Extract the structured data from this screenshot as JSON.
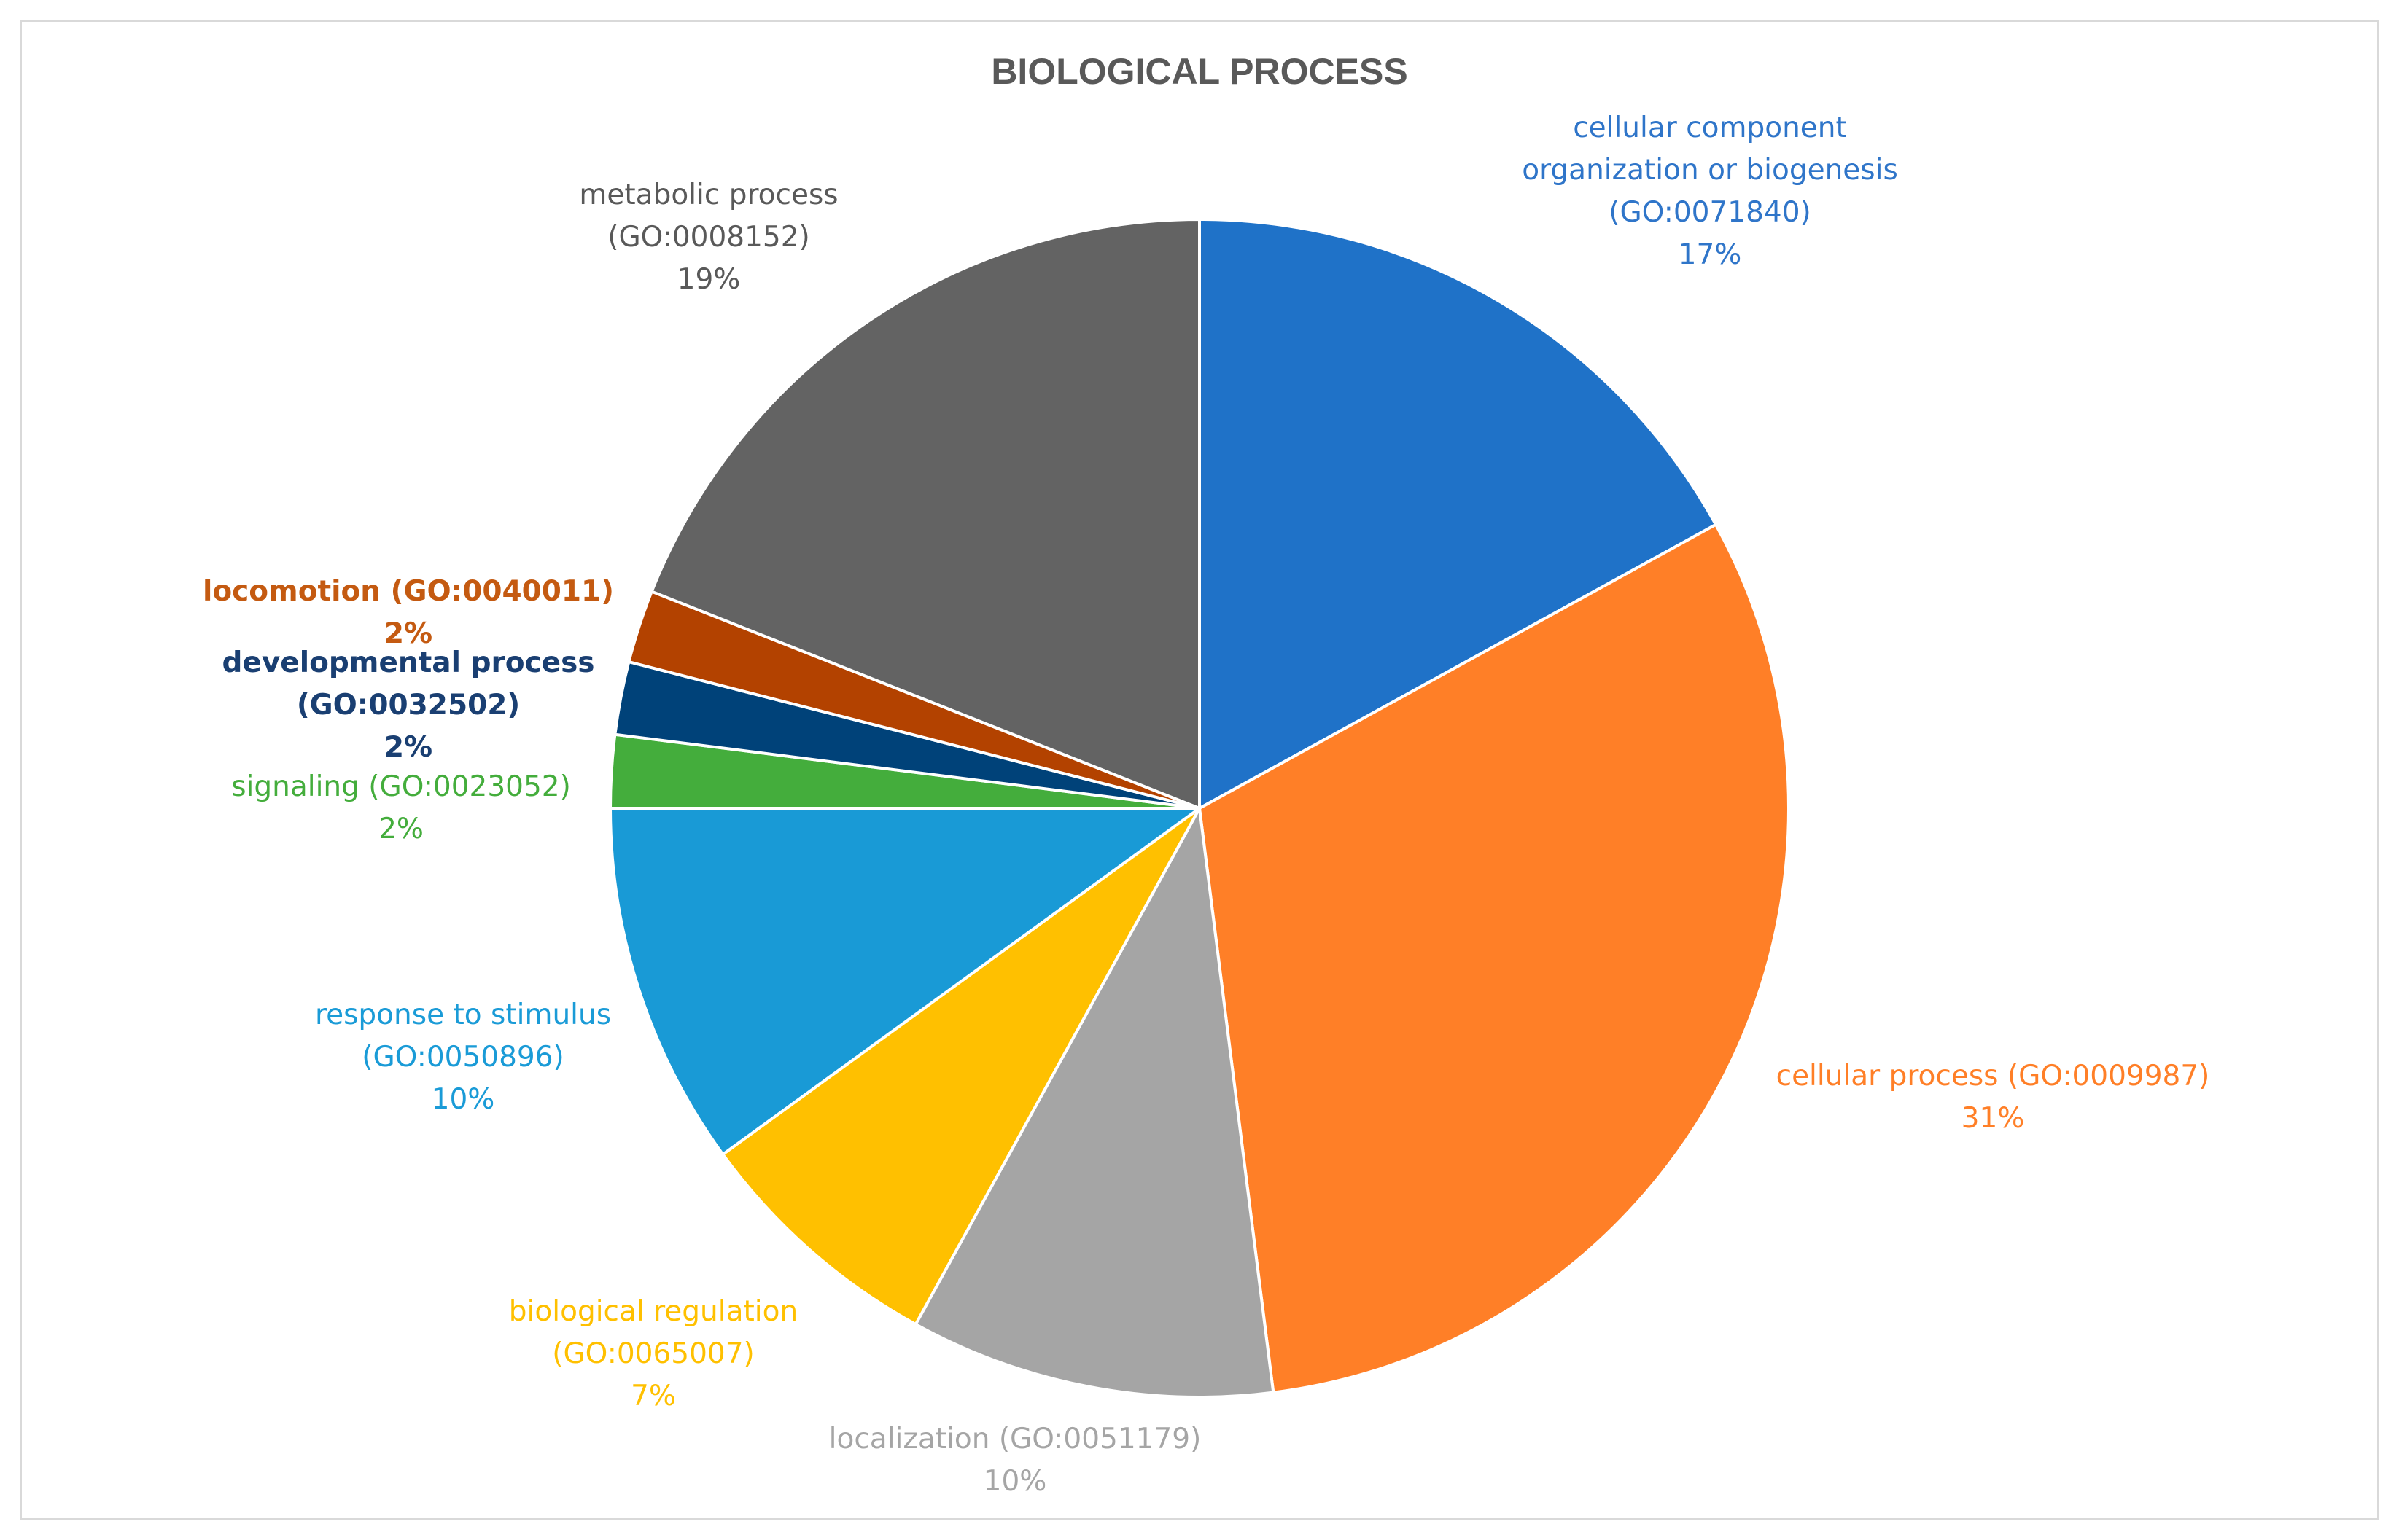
{
  "chart_data": {
    "type": "pie",
    "title": "BIOLOGICAL PROCESS",
    "start_angle": "12 o'clock, clockwise",
    "slices": [
      {
        "label_lines": [
          "cellular component",
          "organization or biogenesis",
          "(GO:0071840)"
        ],
        "percent_label": "17%",
        "value": 17,
        "color": "#1f72c8",
        "label_color": "#2f75c9",
        "bold": false
      },
      {
        "label_lines": [
          "cellular process (GO:0009987)"
        ],
        "percent_label": "31%",
        "value": 31,
        "color": "#ff7f27",
        "label_color": "#ff7f27",
        "bold": false
      },
      {
        "label_lines": [
          "localization (GO:0051179)"
        ],
        "percent_label": "10%",
        "value": 10,
        "color": "#a5a5a5",
        "label_color": "#a5a5a5",
        "bold": false
      },
      {
        "label_lines": [
          "biological regulation",
          "(GO:0065007)"
        ],
        "percent_label": "7%",
        "value": 7,
        "color": "#ffc000",
        "label_color": "#ffc000",
        "bold": false
      },
      {
        "label_lines": [
          "response to stimulus",
          "(GO:0050896)"
        ],
        "percent_label": "10%",
        "value": 10,
        "color": "#199ad6",
        "label_color": "#1a9bd7",
        "bold": false
      },
      {
        "label_lines": [
          "signaling (GO:0023052)"
        ],
        "percent_label": "2%",
        "value": 2,
        "color": "#44ad3c",
        "label_color": "#44ad3c",
        "bold": false
      },
      {
        "label_lines": [
          "developmental process",
          "(GO:0032502)"
        ],
        "percent_label": "2%",
        "value": 2,
        "color": "#004279",
        "label_color": "#1a3f72",
        "bold": true
      },
      {
        "label_lines": [
          "locomotion (GO:0040011)"
        ],
        "percent_label": "2%",
        "value": 2,
        "color": "#b34200",
        "label_color": "#c45a11",
        "bold": true
      },
      {
        "label_lines": [
          "metabolic process",
          "(GO:0008152)"
        ],
        "percent_label": "19%",
        "value": 19,
        "color": "#636363",
        "label_color": "#595959",
        "bold": false
      }
    ]
  }
}
